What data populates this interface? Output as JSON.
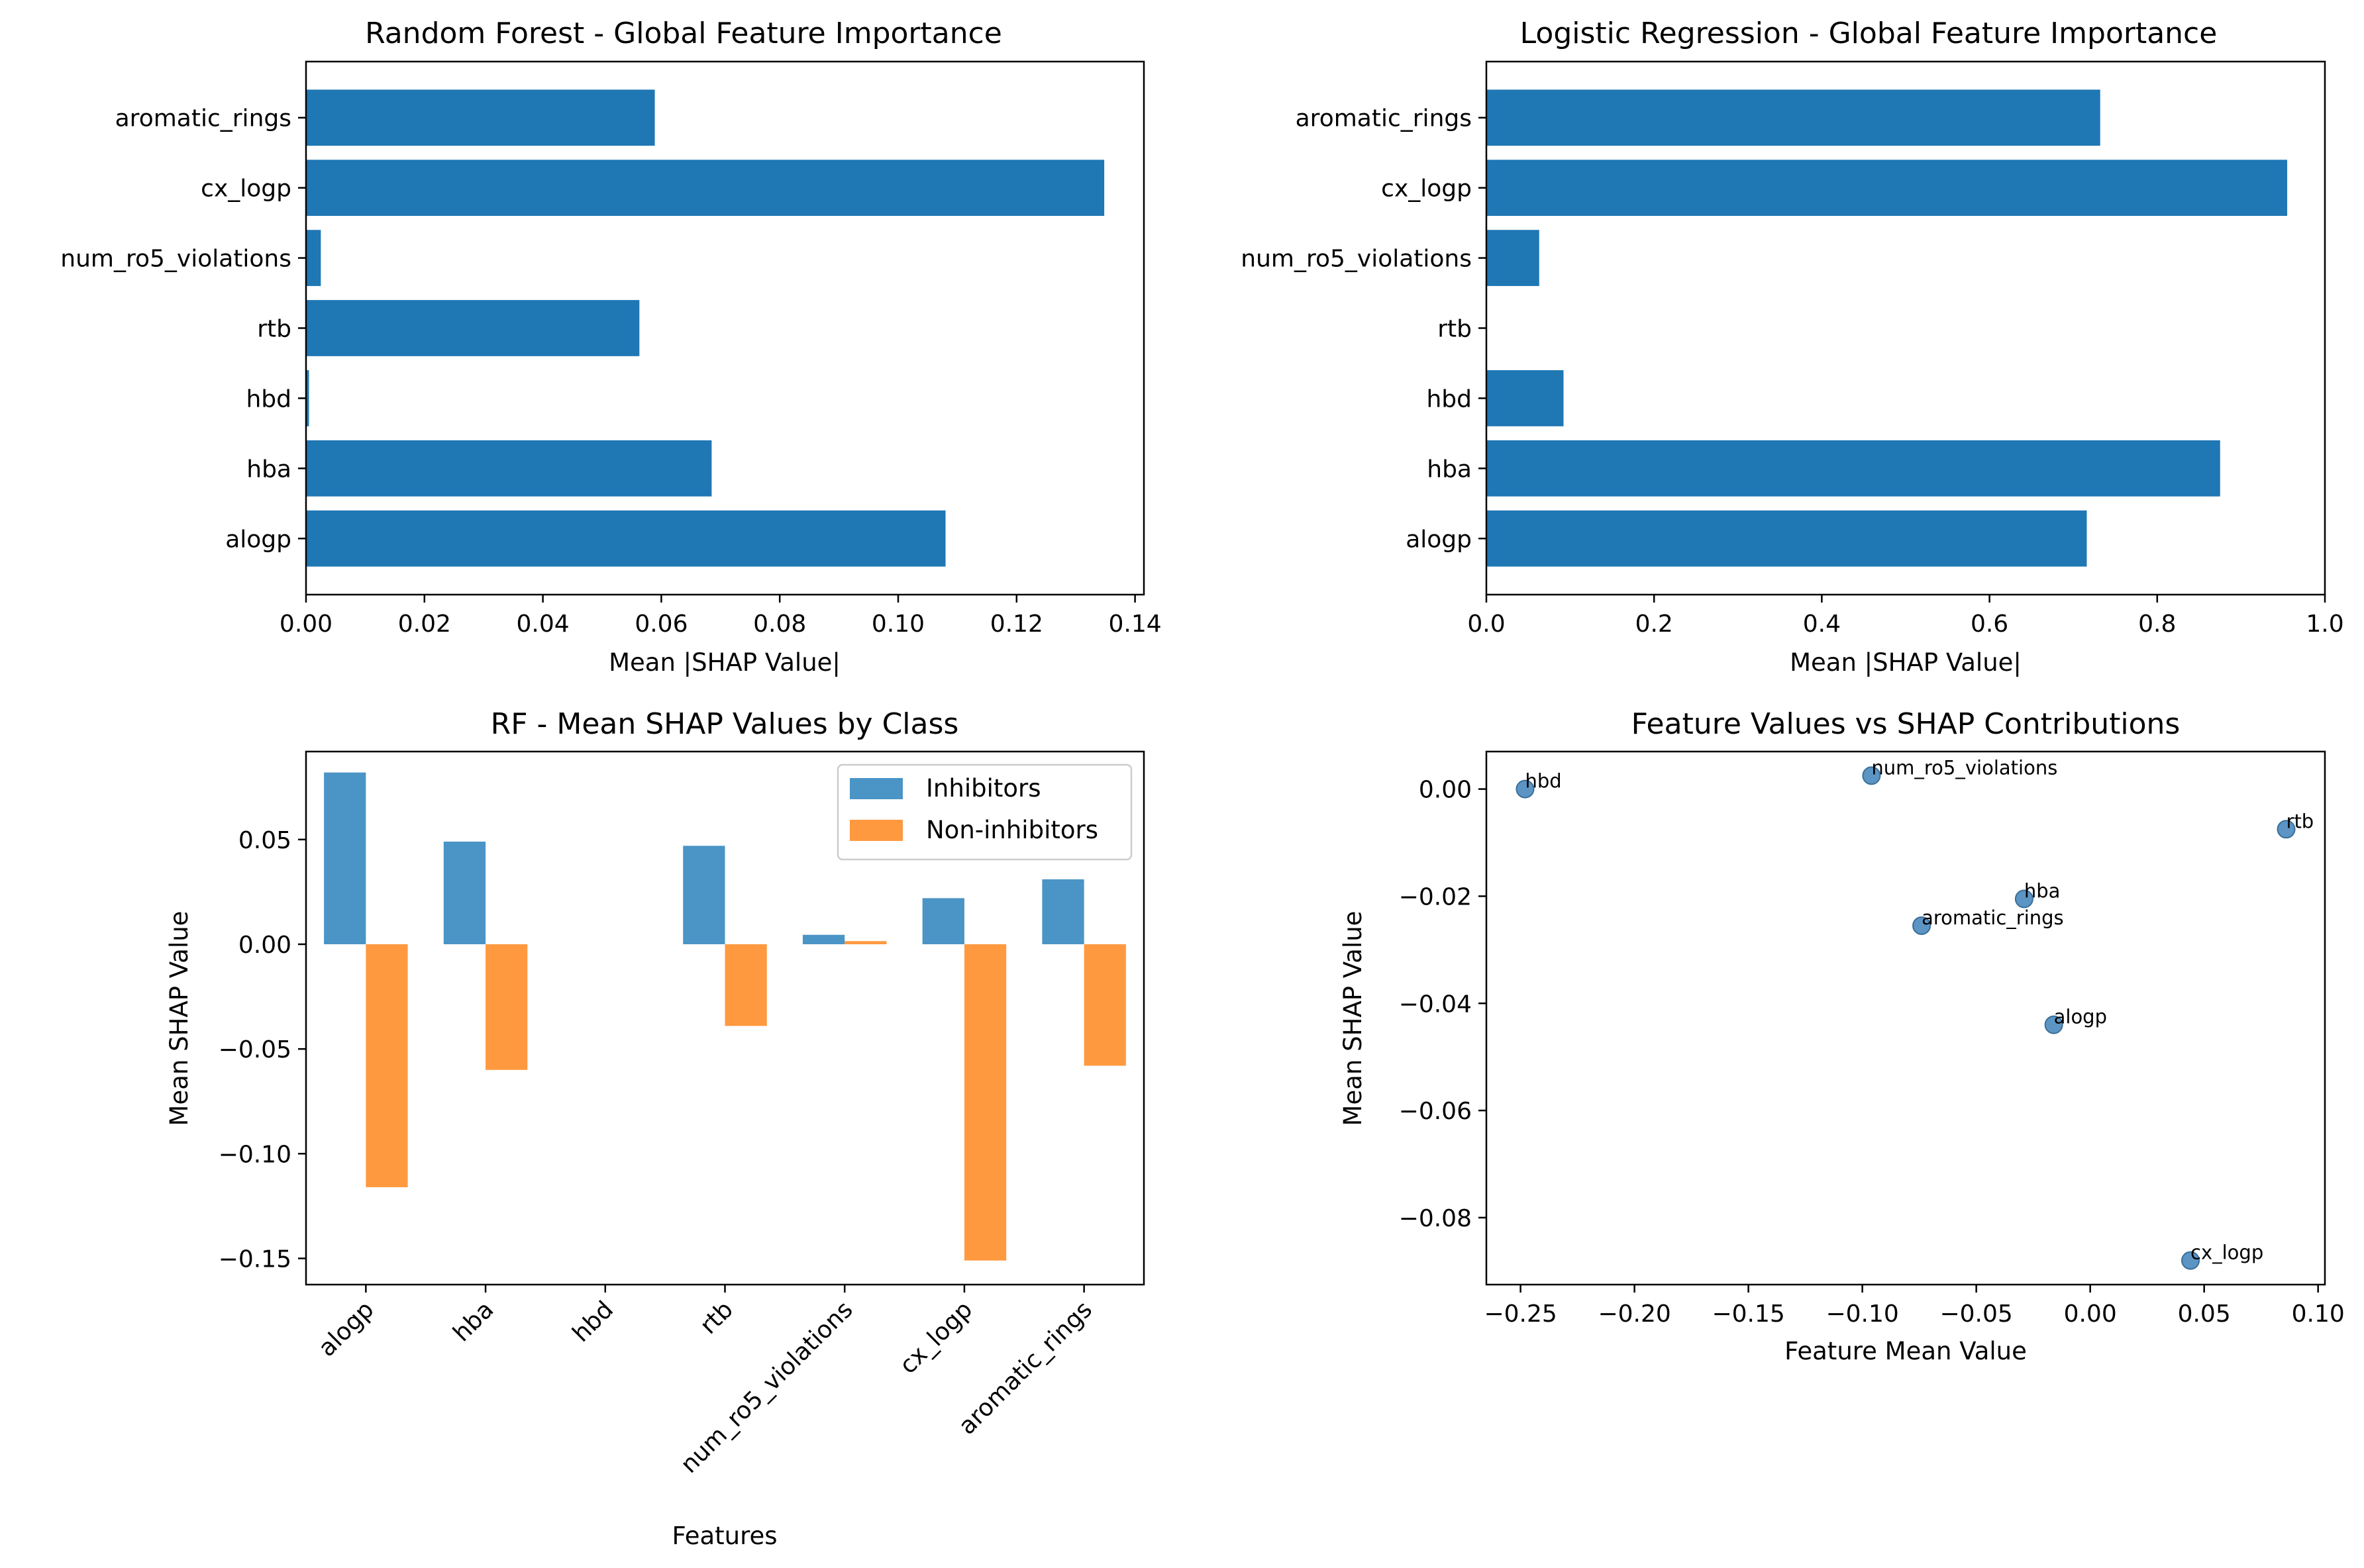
{
  "colors": {
    "bar": "#1f77b4",
    "inhibitors": "#4a94c6",
    "non_inhibitors": "#ff993f",
    "scatter": "#4a89be"
  },
  "chart_data": [
    {
      "type": "bar",
      "orientation": "horizontal",
      "title": "Random Forest - Global Feature Importance",
      "xlabel": "Mean |SHAP Value|",
      "ylabel": "",
      "categories": [
        "alogp",
        "hba",
        "hbd",
        "rtb",
        "num_ro5_violations",
        "cx_logp",
        "aromatic_rings"
      ],
      "values": [
        0.108,
        0.0685,
        0.0005,
        0.0563,
        0.0025,
        0.1348,
        0.0589
      ],
      "xlim": [
        0,
        0.1415
      ],
      "xticks": [
        0.0,
        0.02,
        0.04,
        0.06,
        0.08,
        0.1,
        0.12,
        0.14
      ],
      "xtick_labels": [
        "0.00",
        "0.02",
        "0.04",
        "0.06",
        "0.08",
        "0.10",
        "0.12",
        "0.14"
      ],
      "grid": false
    },
    {
      "type": "bar",
      "orientation": "horizontal",
      "title": "Logistic Regression - Global Feature Importance",
      "xlabel": "Mean |SHAP Value|",
      "ylabel": "",
      "categories": [
        "alogp",
        "hba",
        "hbd",
        "rtb",
        "num_ro5_violations",
        "cx_logp",
        "aromatic_rings"
      ],
      "values": [
        0.716,
        0.875,
        0.092,
        0.0,
        0.063,
        0.955,
        0.732
      ],
      "xlim": [
        0,
        1.0
      ],
      "xticks": [
        0.0,
        0.2,
        0.4,
        0.6,
        0.8,
        1.0
      ],
      "xtick_labels": [
        "0.0",
        "0.2",
        "0.4",
        "0.6",
        "0.8",
        "1.0"
      ],
      "grid": false
    },
    {
      "type": "bar",
      "orientation": "vertical",
      "title": "RF - Mean SHAP Values by Class",
      "xlabel": "Features",
      "ylabel": "Mean SHAP Value",
      "categories": [
        "alogp",
        "hba",
        "hbd",
        "rtb",
        "num_ro5_violations",
        "cx_logp",
        "aromatic_rings"
      ],
      "series": [
        {
          "name": "Inhibitors",
          "values": [
            0.082,
            0.049,
            0.0,
            0.047,
            0.0045,
            0.022,
            0.031
          ]
        },
        {
          "name": "Non-inhibitors",
          "values": [
            -0.116,
            -0.06,
            0.0,
            -0.039,
            0.0015,
            -0.151,
            -0.058
          ]
        }
      ],
      "ylim": [
        -0.1625,
        0.092
      ],
      "yticks": [
        -0.15,
        -0.1,
        -0.05,
        0.0,
        0.05
      ],
      "ytick_labels": [
        "−0.15",
        "−0.10",
        "−0.05",
        "0.00",
        "0.05"
      ],
      "legend": "top-right",
      "grid": false
    },
    {
      "type": "scatter",
      "title": "Feature Values vs SHAP Contributions",
      "xlabel": "Feature Mean Value",
      "ylabel": "Mean SHAP Value",
      "points": [
        {
          "label": "hbd",
          "x": -0.248,
          "y": 0.0
        },
        {
          "label": "num_ro5_violations",
          "x": -0.096,
          "y": 0.0025
        },
        {
          "label": "rtb",
          "x": 0.086,
          "y": -0.0075
        },
        {
          "label": "hba",
          "x": -0.029,
          "y": -0.0205
        },
        {
          "label": "aromatic_rings",
          "x": -0.074,
          "y": -0.0255
        },
        {
          "label": "alogp",
          "x": -0.016,
          "y": -0.044
        },
        {
          "label": "cx_logp",
          "x": 0.044,
          "y": -0.088
        }
      ],
      "xlim": [
        -0.265,
        0.103
      ],
      "ylim": [
        -0.0925,
        0.007
      ],
      "xticks": [
        -0.25,
        -0.2,
        -0.15,
        -0.1,
        -0.05,
        0.0,
        0.05,
        0.1
      ],
      "xtick_labels": [
        "−0.25",
        "−0.20",
        "−0.15",
        "−0.10",
        "−0.05",
        "0.00",
        "0.05",
        "0.10"
      ],
      "yticks": [
        -0.08,
        -0.06,
        -0.04,
        -0.02,
        0.0
      ],
      "ytick_labels": [
        "−0.08",
        "−0.06",
        "−0.04",
        "−0.02",
        "0.00"
      ],
      "grid": false
    }
  ]
}
